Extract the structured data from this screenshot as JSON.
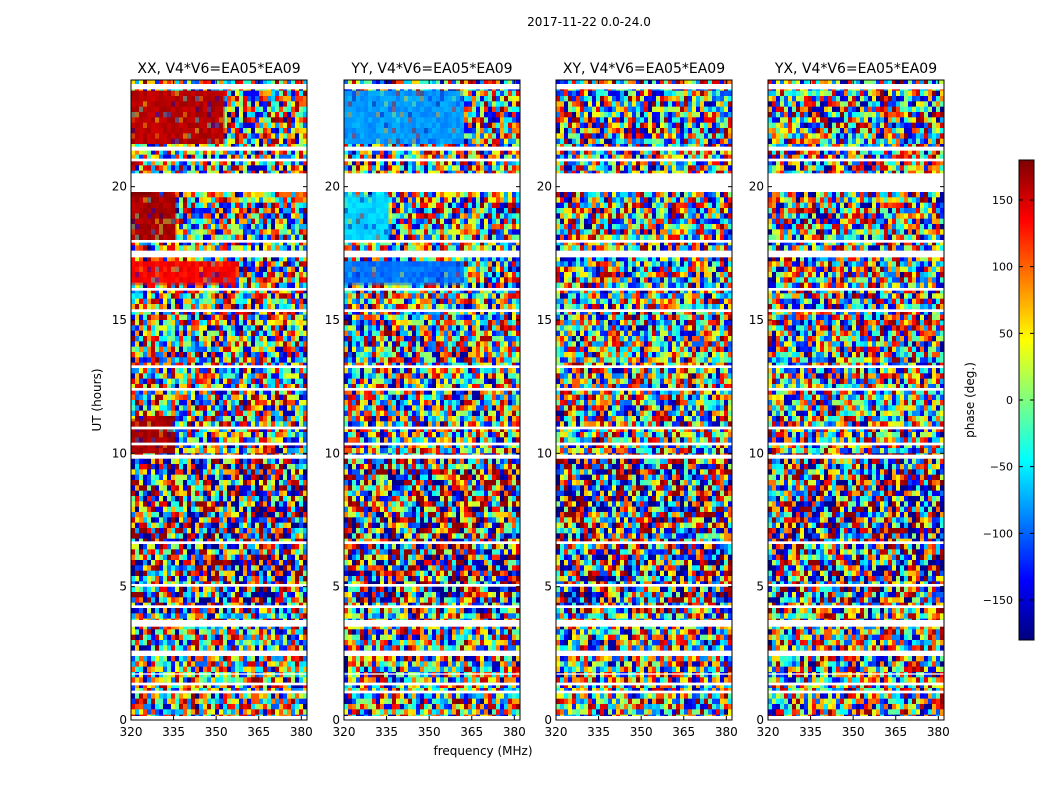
{
  "figure": {
    "suptitle": "2017-11-22 0.0-24.0",
    "xlabel": "frequency (MHz)",
    "ylabel": "UT (hours)"
  },
  "colorbar": {
    "label": "phase (deg.)",
    "range": [
      -180,
      180
    ],
    "ticks": [
      150,
      100,
      50,
      0,
      -50,
      -100,
      -150
    ],
    "tick_labels": [
      "150",
      "100",
      "50",
      "0",
      "−50",
      "−100",
      "−150"
    ],
    "colormap": [
      "#00007f",
      "#0000ff",
      "#007fff",
      "#00ffff",
      "#7fff7f",
      "#ffff00",
      "#ff7f00",
      "#ff0000",
      "#7f0000"
    ]
  },
  "chart_data": {
    "type": "heatmap",
    "x": {
      "label": "frequency (MHz)",
      "range": [
        320,
        382
      ],
      "ticks": [
        320,
        335,
        350,
        365,
        380
      ]
    },
    "y": {
      "label": "UT (hours)",
      "range": [
        0,
        24
      ],
      "ticks": [
        0,
        5,
        10,
        15,
        20
      ]
    },
    "z": {
      "label": "phase (deg.)",
      "range": [
        -180,
        180
      ]
    },
    "panels": [
      {
        "title": "XX, V4*V6=EA05*EA09",
        "polarization": "XX",
        "coherent_blocks": [
          {
            "t0": 16.3,
            "t1": 17.2,
            "phase": 135,
            "f_max": 357
          },
          {
            "t0": 21.6,
            "t1": 23.6,
            "phase": 160,
            "f_max": 353
          },
          {
            "t0": 18.0,
            "t1": 19.7,
            "phase": 165,
            "f_max": 336
          },
          {
            "t0": 10.0,
            "t1": 11.3,
            "phase": 165,
            "f_max": 335
          }
        ]
      },
      {
        "title": "YY, V4*V6=EA05*EA09",
        "polarization": "YY",
        "coherent_blocks": [
          {
            "t0": 16.3,
            "t1": 17.2,
            "phase": -95,
            "f_max": 362
          },
          {
            "t0": 21.6,
            "t1": 23.6,
            "phase": -80,
            "f_max": 362
          },
          {
            "t0": 18.0,
            "t1": 19.7,
            "phase": -60,
            "f_max": 336
          }
        ]
      },
      {
        "title": "XY, V4*V6=EA05*EA09",
        "polarization": "XY",
        "coherent_blocks": []
      },
      {
        "title": "YX, V4*V6=EA05*EA09",
        "polarization": "YX",
        "coherent_blocks": []
      }
    ],
    "flagged_bands_hours": [
      [
        0.0,
        0.15
      ],
      [
        1.0,
        1.1
      ],
      [
        1.3,
        1.4
      ],
      [
        1.7,
        1.75
      ],
      [
        2.4,
        2.6
      ],
      [
        3.5,
        3.75
      ],
      [
        4.2,
        4.3
      ],
      [
        5.0,
        5.1
      ],
      [
        6.6,
        6.7
      ],
      [
        9.8,
        9.95
      ],
      [
        10.3,
        10.4
      ],
      [
        10.9,
        11.0
      ],
      [
        12.35,
        12.45
      ],
      [
        13.2,
        13.3
      ],
      [
        15.3,
        15.4
      ],
      [
        16.1,
        16.2
      ],
      [
        17.35,
        17.6
      ],
      [
        17.9,
        18.0
      ],
      [
        19.8,
        20.5
      ],
      [
        20.95,
        21.05
      ],
      [
        21.35,
        21.5
      ],
      [
        23.65,
        23.85
      ]
    ]
  }
}
